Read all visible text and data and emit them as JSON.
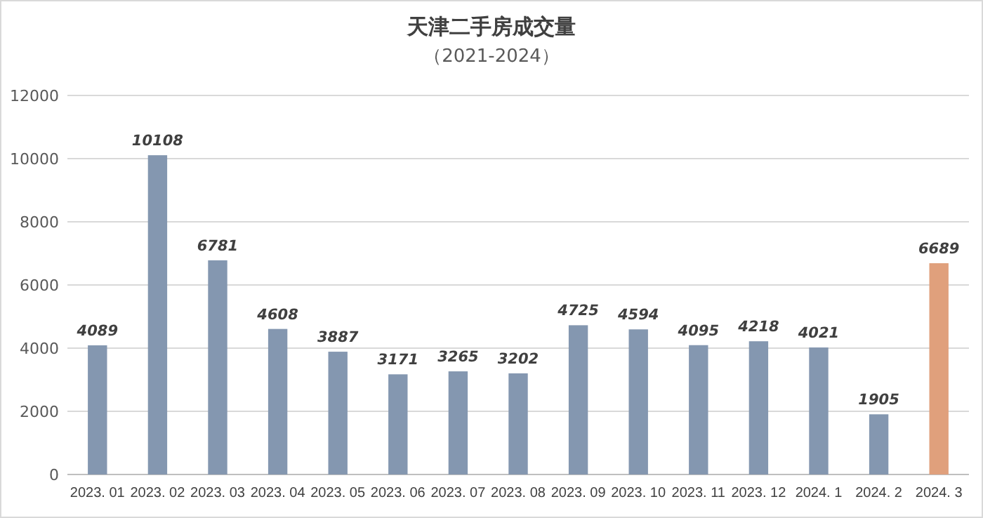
{
  "chart_data": {
    "type": "bar",
    "title": "天津二手房成交量",
    "subtitle": "（2021-2024）",
    "categories": [
      "2023. 01",
      "2023. 02",
      "2023. 03",
      "2023. 04",
      "2023. 05",
      "2023. 06",
      "2023. 07",
      "2023. 08",
      "2023. 09",
      "2023. 10",
      "2023. 11",
      "2023. 12",
      "2024. 1",
      "2024. 2",
      "2024. 3"
    ],
    "values": [
      4089,
      10108,
      6781,
      4608,
      3887,
      3171,
      3265,
      3202,
      4725,
      4594,
      4095,
      4218,
      4021,
      1905,
      6689
    ],
    "colors": [
      "#8497b0",
      "#8497b0",
      "#8497b0",
      "#8497b0",
      "#8497b0",
      "#8497b0",
      "#8497b0",
      "#8497b0",
      "#8497b0",
      "#8497b0",
      "#8497b0",
      "#8497b0",
      "#8497b0",
      "#8497b0",
      "#e0a07c"
    ],
    "ylim": [
      0,
      12000
    ],
    "yticks": [
      0,
      2000,
      4000,
      6000,
      8000,
      10000,
      12000
    ],
    "grid": "y",
    "data_labels": true
  }
}
